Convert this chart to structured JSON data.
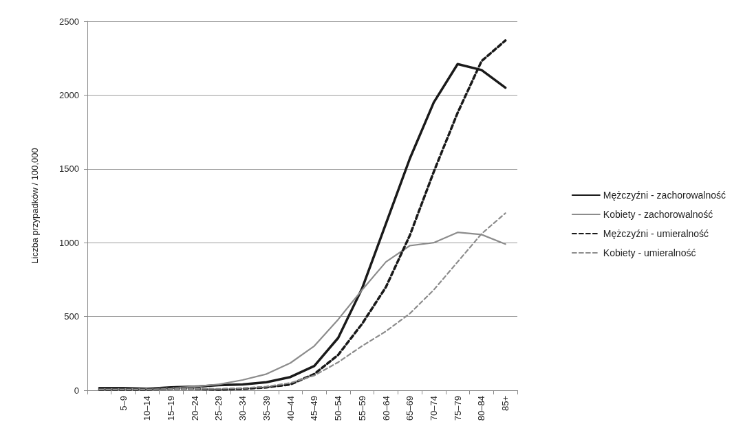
{
  "chart_data": {
    "type": "line",
    "ylabel": "Liczba przypadków / 100,000",
    "categories": [
      null,
      "5–9",
      "10–14",
      "15–19",
      "20–24",
      "25–29",
      "30–34",
      "35–39",
      "40–44",
      "45–49",
      "50–54",
      "55–59",
      "60–64",
      "65–69",
      "70–74",
      "75–79",
      "80–84",
      "85+"
    ],
    "series": [
      {
        "name": "Mężczyźni - zachorowalność",
        "color": "#1a1a1a",
        "line_style": "solid",
        "values": [
          15,
          15,
          10,
          20,
          25,
          35,
          40,
          55,
          90,
          165,
          355,
          690,
          1130,
          1570,
          1950,
          2210,
          2170,
          2050
        ]
      },
      {
        "name": "Kobiety - zachorowalność",
        "color": "#8c8c8c",
        "line_style": "solid",
        "values": [
          10,
          10,
          10,
          15,
          25,
          40,
          70,
          110,
          185,
          300,
          480,
          680,
          870,
          980,
          1000,
          1070,
          1055,
          990
        ]
      },
      {
        "name": "Mężczyźni - umieralność",
        "color": "#1a1a1a",
        "line_style": "dashed",
        "values": [
          5,
          5,
          5,
          10,
          10,
          5,
          10,
          20,
          40,
          110,
          240,
          450,
          700,
          1050,
          1480,
          1880,
          2230,
          2370
        ]
      },
      {
        "name": "Kobiety - umieralność",
        "color": "#8c8c8c",
        "line_style": "dashed",
        "values": [
          5,
          5,
          5,
          10,
          10,
          10,
          15,
          25,
          50,
          100,
          190,
          300,
          400,
          520,
          680,
          870,
          1060,
          1200
        ]
      }
    ],
    "ylim": [
      0,
      2500
    ],
    "yticks": [
      0,
      500,
      1000,
      1500,
      2000,
      2500
    ],
    "grid": "y",
    "legend": "right",
    "marker": "none"
  }
}
